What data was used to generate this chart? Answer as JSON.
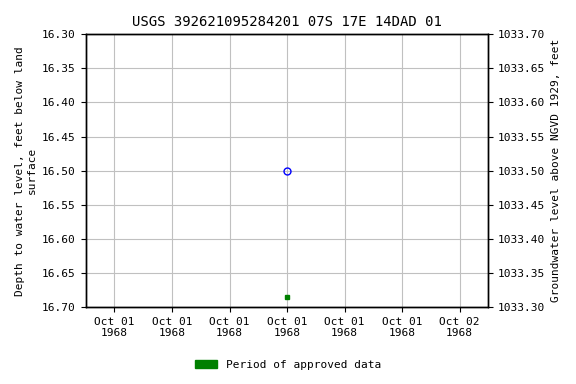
{
  "title": "USGS 392621095284201 07S 17E 14DAD 01",
  "ylabel_left": "Depth to water level, feet below land\nsurface",
  "ylabel_right": "Groundwater level above NGVD 1929, feet",
  "ylim_left": [
    16.7,
    16.3
  ],
  "ylim_right": [
    1033.3,
    1033.7
  ],
  "yticks_left": [
    16.3,
    16.35,
    16.4,
    16.45,
    16.5,
    16.55,
    16.6,
    16.65,
    16.7
  ],
  "yticks_right": [
    1033.7,
    1033.65,
    1033.6,
    1033.55,
    1033.5,
    1033.45,
    1033.4,
    1033.35,
    1033.3
  ],
  "xtick_positions": [
    0,
    1,
    2,
    3,
    4,
    5,
    6
  ],
  "xtick_labels": [
    "Oct 01\n1968",
    "Oct 01\n1968",
    "Oct 01\n1968",
    "Oct 01\n1968",
    "Oct 01\n1968",
    "Oct 01\n1968",
    "Oct 02\n1968"
  ],
  "xlim": [
    -0.5,
    6.5
  ],
  "grid_color": "#c0c0c0",
  "bg_color": "#ffffff",
  "point_open_x": 3,
  "point_open_y": 16.5,
  "point_open_color": "#0000ff",
  "point_filled_x": 3,
  "point_filled_y": 16.685,
  "point_filled_color": "#008000",
  "legend_label": "Period of approved data",
  "legend_color": "#008000",
  "title_fontsize": 10,
  "axis_fontsize": 8,
  "tick_fontsize": 8
}
